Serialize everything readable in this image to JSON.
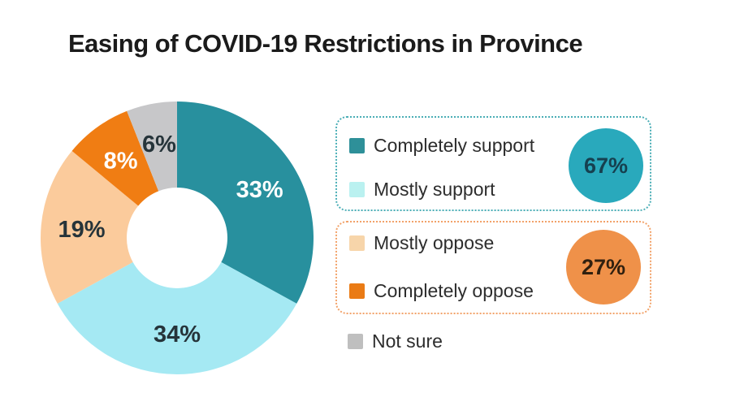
{
  "title": "Easing of COVID-19 Restrictions in Province",
  "chart_data": {
    "type": "pie",
    "subtype": "donut",
    "title": "Easing of COVID-19 Restrictions in Province",
    "categories": [
      "Completely support",
      "Mostly support",
      "Mostly oppose",
      "Completely oppose",
      "Not sure"
    ],
    "values": [
      33,
      34,
      19,
      8,
      6
    ],
    "slice_labels": [
      "33%",
      "34%",
      "19%",
      "8%",
      "6%"
    ],
    "colors": [
      "#28909e",
      "#a5e9f3",
      "#fbcb9c",
      "#f07d13",
      "#c7c7c9"
    ],
    "slice_label_colors": [
      "#ffffff",
      "#26343a",
      "#26343a",
      "#ffffff",
      "#26343a"
    ],
    "start_angle_deg": 0,
    "direction": "clockwise",
    "legend_position": "right",
    "grouped_totals": [
      {
        "label": "67%",
        "members": [
          "Completely support",
          "Mostly support"
        ],
        "color": "#29a9bc"
      },
      {
        "label": "27%",
        "members": [
          "Mostly oppose",
          "Completely oppose"
        ],
        "color": "#ef9149"
      }
    ]
  },
  "legend": {
    "support_group": {
      "border_color": "#4aaeb6",
      "items": [
        {
          "label": "Completely support",
          "swatch": "#2e9099"
        },
        {
          "label": "Mostly support",
          "swatch": "#baf1f0"
        }
      ],
      "badge_label": "67%",
      "badge_color": "#29a9bc",
      "badge_text_color": "#16404f"
    },
    "oppose_group": {
      "border_color": "#f2a269",
      "items": [
        {
          "label": "Mostly oppose",
          "swatch": "#f7d5aa"
        },
        {
          "label": "Completely oppose",
          "swatch": "#ea7b15"
        }
      ],
      "badge_label": "27%",
      "badge_color": "#ef9149",
      "badge_text_color": "#30200f"
    },
    "not_sure": {
      "label": "Not sure",
      "swatch": "#bfbfbf"
    }
  }
}
